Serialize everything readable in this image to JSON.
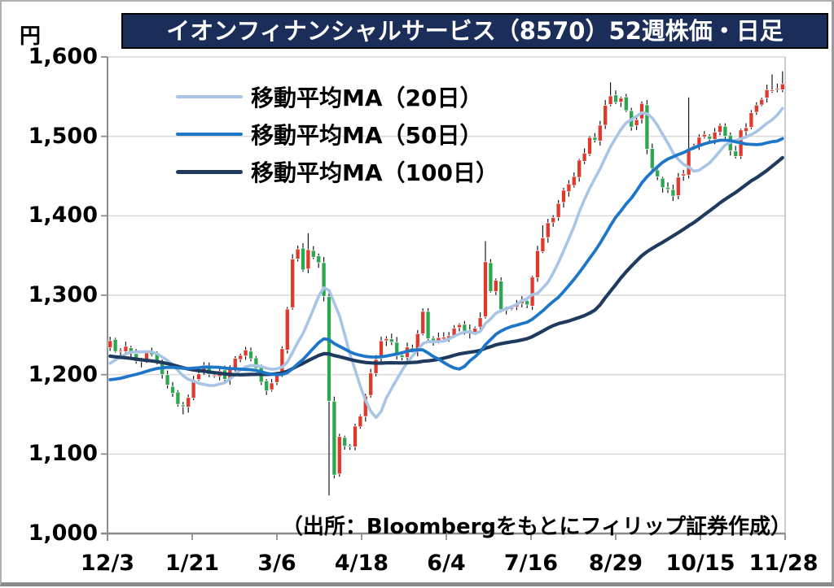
{
  "title": "イオンフィナンシャルサービス（8570）52週株価・日足",
  "source_note": "（出所：Bloombergをもとにフィリップ証券作成）",
  "y_axis": {
    "unit": "円",
    "ticks": [
      "1,600",
      "1,500",
      "1,400",
      "1,300",
      "1,200",
      "1,100",
      "1,000"
    ]
  },
  "x_axis": {
    "ticks": [
      "12/3",
      "1/21",
      "3/6",
      "4/18",
      "6/4",
      "7/16",
      "8/29",
      "10/15",
      "11/28"
    ]
  },
  "legend": [
    {
      "label": "移動平均MA（20日）",
      "color": "#a9c5e6"
    },
    {
      "label": "移動平均MA（50日）",
      "color": "#1e76c8"
    },
    {
      "label": "移動平均MA（100日）",
      "color": "#1f3a5f"
    }
  ],
  "colors": {
    "title_bg": "#1b2e5a",
    "title_text": "#ffffff",
    "up_candle": "#e0392c",
    "down_candle": "#2ba84f",
    "wick": "#1a1a1a",
    "gridline": "#d9d9d9",
    "axis": "#8c8c8c"
  },
  "chart_data": {
    "type": "candlestick",
    "title": "イオンフィナンシャルサービス（8570）52週株価・日足",
    "ylabel": "円",
    "ylim": [
      1000,
      1600
    ],
    "y_step": 100,
    "x_tick_labels": [
      "12/3",
      "1/21",
      "3/6",
      "4/18",
      "6/4",
      "7/16",
      "8/29",
      "10/15",
      "11/28"
    ],
    "num_candles": 130,
    "up_color": "#e0392c",
    "down_color": "#2ba84f",
    "series": [
      {
        "name": "移動平均MA（20日）",
        "window_bars": 10,
        "color": "#a9c5e6",
        "width": 3.6
      },
      {
        "name": "移動平均MA（50日）",
        "window_bars": 26,
        "color": "#1e76c8",
        "width": 3.8
      },
      {
        "name": "移動平均MA（100日）",
        "window_bars": 52,
        "color": "#1f3a5f",
        "width": 4.2
      }
    ],
    "close_path": [
      [
        0,
        1242
      ],
      [
        0.01,
        1222
      ],
      [
        0.021,
        1240
      ],
      [
        0.031,
        1228
      ],
      [
        0.041,
        1215
      ],
      [
        0.051,
        1222
      ],
      [
        0.06,
        1232
      ],
      [
        0.071,
        1210
      ],
      [
        0.08,
        1198
      ],
      [
        0.091,
        1180
      ],
      [
        0.101,
        1165
      ],
      [
        0.11,
        1156
      ],
      [
        0.121,
        1185
      ],
      [
        0.13,
        1202
      ],
      [
        0.141,
        1210
      ],
      [
        0.151,
        1195
      ],
      [
        0.162,
        1203
      ],
      [
        0.171,
        1195
      ],
      [
        0.181,
        1212
      ],
      [
        0.192,
        1226
      ],
      [
        0.201,
        1232
      ],
      [
        0.212,
        1220
      ],
      [
        0.222,
        1196
      ],
      [
        0.231,
        1178
      ],
      [
        0.242,
        1192
      ],
      [
        0.252,
        1208
      ],
      [
        0.257,
        1238
      ],
      [
        0.262,
        1265
      ],
      [
        0.267,
        1312
      ],
      [
        0.272,
        1348
      ],
      [
        0.278,
        1360
      ],
      [
        0.283,
        1338
      ],
      [
        0.287,
        1330
      ],
      [
        0.293,
        1354
      ],
      [
        0.298,
        1366
      ],
      [
        0.302,
        1350
      ],
      [
        0.308,
        1333
      ],
      [
        0.313,
        1346
      ],
      [
        0.317,
        1312
      ],
      [
        0.321,
        1252
      ],
      [
        0.323,
        1215
      ],
      [
        0.326,
        1160
      ],
      [
        0.328,
        1080
      ],
      [
        0.333,
        1070
      ],
      [
        0.338,
        1112
      ],
      [
        0.343,
        1128
      ],
      [
        0.348,
        1108
      ],
      [
        0.353,
        1122
      ],
      [
        0.358,
        1104
      ],
      [
        0.363,
        1132
      ],
      [
        0.369,
        1152
      ],
      [
        0.373,
        1146
      ],
      [
        0.379,
        1172
      ],
      [
        0.384,
        1190
      ],
      [
        0.394,
        1216
      ],
      [
        0.403,
        1242
      ],
      [
        0.414,
        1250
      ],
      [
        0.423,
        1228
      ],
      [
        0.434,
        1222
      ],
      [
        0.444,
        1238
      ],
      [
        0.453,
        1228
      ],
      [
        0.464,
        1286
      ],
      [
        0.47,
        1258
      ],
      [
        0.474,
        1244
      ],
      [
        0.485,
        1240
      ],
      [
        0.494,
        1250
      ],
      [
        0.5,
        1248
      ],
      [
        0.51,
        1256
      ],
      [
        0.52,
        1262
      ],
      [
        0.53,
        1250
      ],
      [
        0.54,
        1258
      ],
      [
        0.55,
        1268
      ],
      [
        0.556,
        1352
      ],
      [
        0.56,
        1338
      ],
      [
        0.565,
        1300
      ],
      [
        0.571,
        1332
      ],
      [
        0.576,
        1312
      ],
      [
        0.58,
        1282
      ],
      [
        0.586,
        1272
      ],
      [
        0.592,
        1290
      ],
      [
        0.601,
        1280
      ],
      [
        0.612,
        1296
      ],
      [
        0.621,
        1288
      ],
      [
        0.624,
        1300
      ],
      [
        0.631,
        1338
      ],
      [
        0.636,
        1360
      ],
      [
        0.642,
        1378
      ],
      [
        0.647,
        1365
      ],
      [
        0.651,
        1388
      ],
      [
        0.657,
        1404
      ],
      [
        0.662,
        1394
      ],
      [
        0.666,
        1416
      ],
      [
        0.672,
        1438
      ],
      [
        0.677,
        1424
      ],
      [
        0.681,
        1434
      ],
      [
        0.687,
        1454
      ],
      [
        0.692,
        1444
      ],
      [
        0.697,
        1468
      ],
      [
        0.702,
        1484
      ],
      [
        0.707,
        1476
      ],
      [
        0.712,
        1494
      ],
      [
        0.717,
        1504
      ],
      [
        0.722,
        1496
      ],
      [
        0.727,
        1512
      ],
      [
        0.733,
        1526
      ],
      [
        0.737,
        1538
      ],
      [
        0.742,
        1550
      ],
      [
        0.748,
        1558
      ],
      [
        0.75,
        1544
      ],
      [
        0.755,
        1534
      ],
      [
        0.76,
        1548
      ],
      [
        0.765,
        1538
      ],
      [
        0.77,
        1524
      ],
      [
        0.776,
        1512
      ],
      [
        0.78,
        1528
      ],
      [
        0.785,
        1516
      ],
      [
        0.791,
        1540
      ],
      [
        0.795,
        1498
      ],
      [
        0.8,
        1476
      ],
      [
        0.806,
        1458
      ],
      [
        0.81,
        1444
      ],
      [
        0.815,
        1454
      ],
      [
        0.821,
        1436
      ],
      [
        0.826,
        1426
      ],
      [
        0.83,
        1432
      ],
      [
        0.836,
        1422
      ],
      [
        0.841,
        1436
      ],
      [
        0.845,
        1448
      ],
      [
        0.851,
        1444
      ],
      [
        0.856,
        1468
      ],
      [
        0.86,
        1482
      ],
      [
        0.866,
        1494
      ],
      [
        0.871,
        1486
      ],
      [
        0.876,
        1500
      ],
      [
        0.881,
        1494
      ],
      [
        0.886,
        1506
      ],
      [
        0.891,
        1496
      ],
      [
        0.897,
        1510
      ],
      [
        0.901,
        1502
      ],
      [
        0.906,
        1514
      ],
      [
        0.912,
        1506
      ],
      [
        0.916,
        1494
      ],
      [
        0.921,
        1486
      ],
      [
        0.927,
        1468
      ],
      [
        0.931,
        1480
      ],
      [
        0.936,
        1502
      ],
      [
        0.942,
        1518
      ],
      [
        0.947,
        1510
      ],
      [
        0.951,
        1532
      ],
      [
        0.957,
        1526
      ],
      [
        0.962,
        1540
      ],
      [
        0.966,
        1552
      ],
      [
        0.972,
        1546
      ],
      [
        0.977,
        1560
      ],
      [
        0.981,
        1568
      ],
      [
        0.987,
        1556
      ],
      [
        0.992,
        1562
      ],
      [
        0.997,
        1570
      ],
      [
        1,
        1566
      ]
    ],
    "prehistory_path": [
      [
        -0.42,
        1272
      ],
      [
        -0.3,
        1256
      ],
      [
        -0.22,
        1240
      ],
      [
        -0.16,
        1172
      ],
      [
        -0.08,
        1178
      ],
      [
        -0.02,
        1226
      ],
      [
        0,
        1242
      ]
    ],
    "wick_overrides": [
      [
        0.11,
        "low",
        1150
      ],
      [
        0.298,
        "high",
        1378
      ],
      [
        0.328,
        "low",
        1048
      ],
      [
        0.556,
        "high",
        1368
      ],
      [
        0.642,
        "high",
        1388
      ],
      [
        0.748,
        "high",
        1568
      ],
      [
        0.86,
        "high",
        1549
      ],
      [
        0.981,
        "high",
        1578
      ],
      [
        1,
        "high",
        1582
      ]
    ]
  }
}
